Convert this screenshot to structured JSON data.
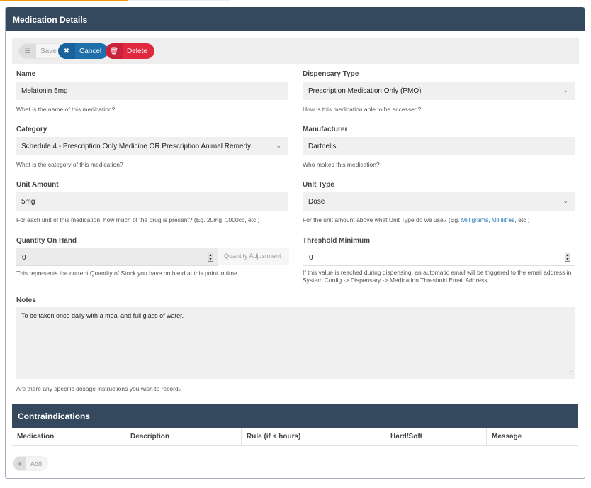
{
  "panel_title": "Medication Details",
  "toolbar": {
    "save_label": "Save",
    "cancel_label": "Cancel",
    "delete_label": "Delete"
  },
  "fields": {
    "name": {
      "label": "Name",
      "value": "Melatonin 5mg",
      "help": "What is the name of this medication?"
    },
    "dispensary_type": {
      "label": "Dispensary Type",
      "value": "Prescription Medication Only (PMO)",
      "help": "How is this medication able to be accessed?"
    },
    "category": {
      "label": "Category",
      "value": "Schedule 4 - Prescription Only Medicine OR Prescription Animal Remedy",
      "help": "What is the category of this medication?"
    },
    "manufacturer": {
      "label": "Manufacturer",
      "value": "Dartnells",
      "help": "Who makes this medication?"
    },
    "unit_amount": {
      "label": "Unit Amount",
      "value": "5mg",
      "help": "For each unit of this medication, how much of the drug is present? (Eg. 20mg, 1000cc, etc.)"
    },
    "unit_type": {
      "label": "Unit Type",
      "value": "Dose",
      "help_pre": "For the unit amount above what Unit Type do we use? (Eg. ",
      "help_link": "Milligrams, Millilitres",
      "help_post": ", etc.)"
    },
    "quantity_on_hand": {
      "label": "Quantity On Hand",
      "value": "0",
      "addon": "Quantity Adjustment",
      "help": "This represents the current Quantity of Stock you have on hand at this point in time."
    },
    "threshold_minimum": {
      "label": "Threshold Minimum",
      "value": "0",
      "help": "If this value is reached during dispensing, an automatic email will be triggered to the email address in System Config -> Dispensary -> Medication Threshold Email Address"
    },
    "notes": {
      "label": "Notes",
      "value": "To be taken once daily with a meal and full glass of water.",
      "help": "Are there any specific dosage instructions you wish to record?"
    }
  },
  "contraindications": {
    "title": "Contraindications",
    "columns": [
      "Medication",
      "Description",
      "Rule (if < hours)",
      "Hard/Soft",
      "Message"
    ],
    "add_label": "Add"
  },
  "colors": {
    "header": "#34495e",
    "cancel": "#1f6fab",
    "delete": "#e0283f",
    "accent": "#f39c12"
  }
}
